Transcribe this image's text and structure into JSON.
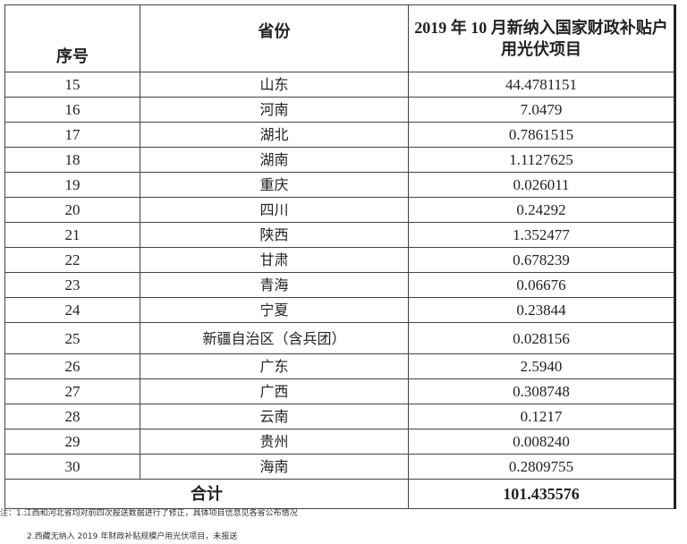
{
  "headers": {
    "index": "序号",
    "province": "省份",
    "value": "2019 年 10 月新纳入国家财政补贴户用光伏项目"
  },
  "rows": [
    {
      "index": "15",
      "province": "山东",
      "value": "44.4781151"
    },
    {
      "index": "16",
      "province": "河南",
      "value": "7.0479"
    },
    {
      "index": "17",
      "province": "湖北",
      "value": "0.7861515"
    },
    {
      "index": "18",
      "province": "湖南",
      "value": "1.1127625"
    },
    {
      "index": "19",
      "province": "重庆",
      "value": "0.026011"
    },
    {
      "index": "20",
      "province": "四川",
      "value": "0.24292"
    },
    {
      "index": "21",
      "province": "陕西",
      "value": "1.352477"
    },
    {
      "index": "22",
      "province": "甘肃",
      "value": "0.678239"
    },
    {
      "index": "23",
      "province": "青海",
      "value": "0.06676"
    },
    {
      "index": "24",
      "province": "宁夏",
      "value": "0.23844"
    },
    {
      "index": "25",
      "province": "新疆自治区（含兵团）",
      "value": "0.028156"
    },
    {
      "index": "26",
      "province": "广东",
      "value": "2.5940"
    },
    {
      "index": "27",
      "province": "广西",
      "value": "0.308748"
    },
    {
      "index": "28",
      "province": "云南",
      "value": "0.1217"
    },
    {
      "index": "29",
      "province": "贵州",
      "value": "0.008240"
    },
    {
      "index": "30",
      "province": "海南",
      "value": "0.2809755"
    }
  ],
  "total": {
    "label": "合计",
    "value": "101.435576"
  },
  "notes": [
    "注：1.江西和河北省均对前四次报送数据进行了修正，具体项目信息见各省公布情况",
    "2.西藏无纳入 2019 年财政补贴规模户用光伏项目，未报送"
  ]
}
